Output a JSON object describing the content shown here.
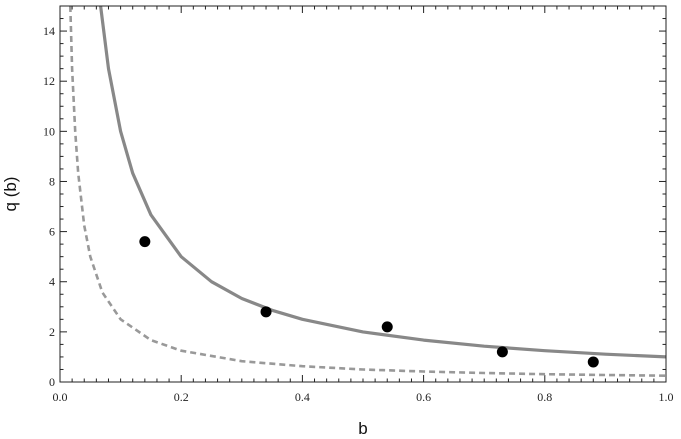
{
  "chart_data": {
    "type": "scatter",
    "title": "",
    "xlabel": "b",
    "ylabel": "q (b)",
    "xlim": [
      0,
      1
    ],
    "ylim": [
      0,
      15
    ],
    "x_ticks": [
      0.0,
      0.2,
      0.4,
      0.6,
      0.8,
      1.0
    ],
    "x_tick_labels": [
      "0.0",
      "0.2",
      "0.4",
      "0.6",
      "0.8",
      "1.0"
    ],
    "y_ticks": [
      0,
      2,
      4,
      6,
      8,
      10,
      12,
      14
    ],
    "y_tick_labels": [
      "0",
      "2",
      "4",
      "6",
      "8",
      "10",
      "12",
      "14"
    ],
    "grid": false,
    "series": [
      {
        "kind": "points",
        "color": "#000000",
        "x": [
          0.14,
          0.34,
          0.54,
          0.73,
          0.88
        ],
        "y": [
          5.6,
          2.8,
          2.2,
          1.2,
          0.8
        ]
      },
      {
        "kind": "line",
        "style": "solid",
        "color": "#888888",
        "x": [
          0.067,
          0.08,
          0.1,
          0.12,
          0.15,
          0.2,
          0.25,
          0.3,
          0.35,
          0.4,
          0.5,
          0.6,
          0.7,
          0.8,
          0.9,
          1.0
        ],
        "y": [
          15.0,
          12.5,
          10.0,
          8.33,
          6.67,
          5.0,
          4.0,
          3.33,
          2.86,
          2.5,
          2.0,
          1.67,
          1.43,
          1.25,
          1.11,
          1.0
        ]
      },
      {
        "kind": "line",
        "style": "dashed",
        "color": "#999999",
        "x": [
          0.017,
          0.02,
          0.025,
          0.03,
          0.04,
          0.05,
          0.07,
          0.1,
          0.15,
          0.2,
          0.3,
          0.4,
          0.5,
          0.6,
          0.7,
          0.8,
          0.9,
          1.0
        ],
        "y": [
          15.0,
          12.5,
          10.0,
          8.33,
          6.25,
          5.0,
          3.57,
          2.5,
          1.67,
          1.25,
          0.83,
          0.63,
          0.5,
          0.42,
          0.36,
          0.31,
          0.28,
          0.25
        ]
      }
    ]
  }
}
